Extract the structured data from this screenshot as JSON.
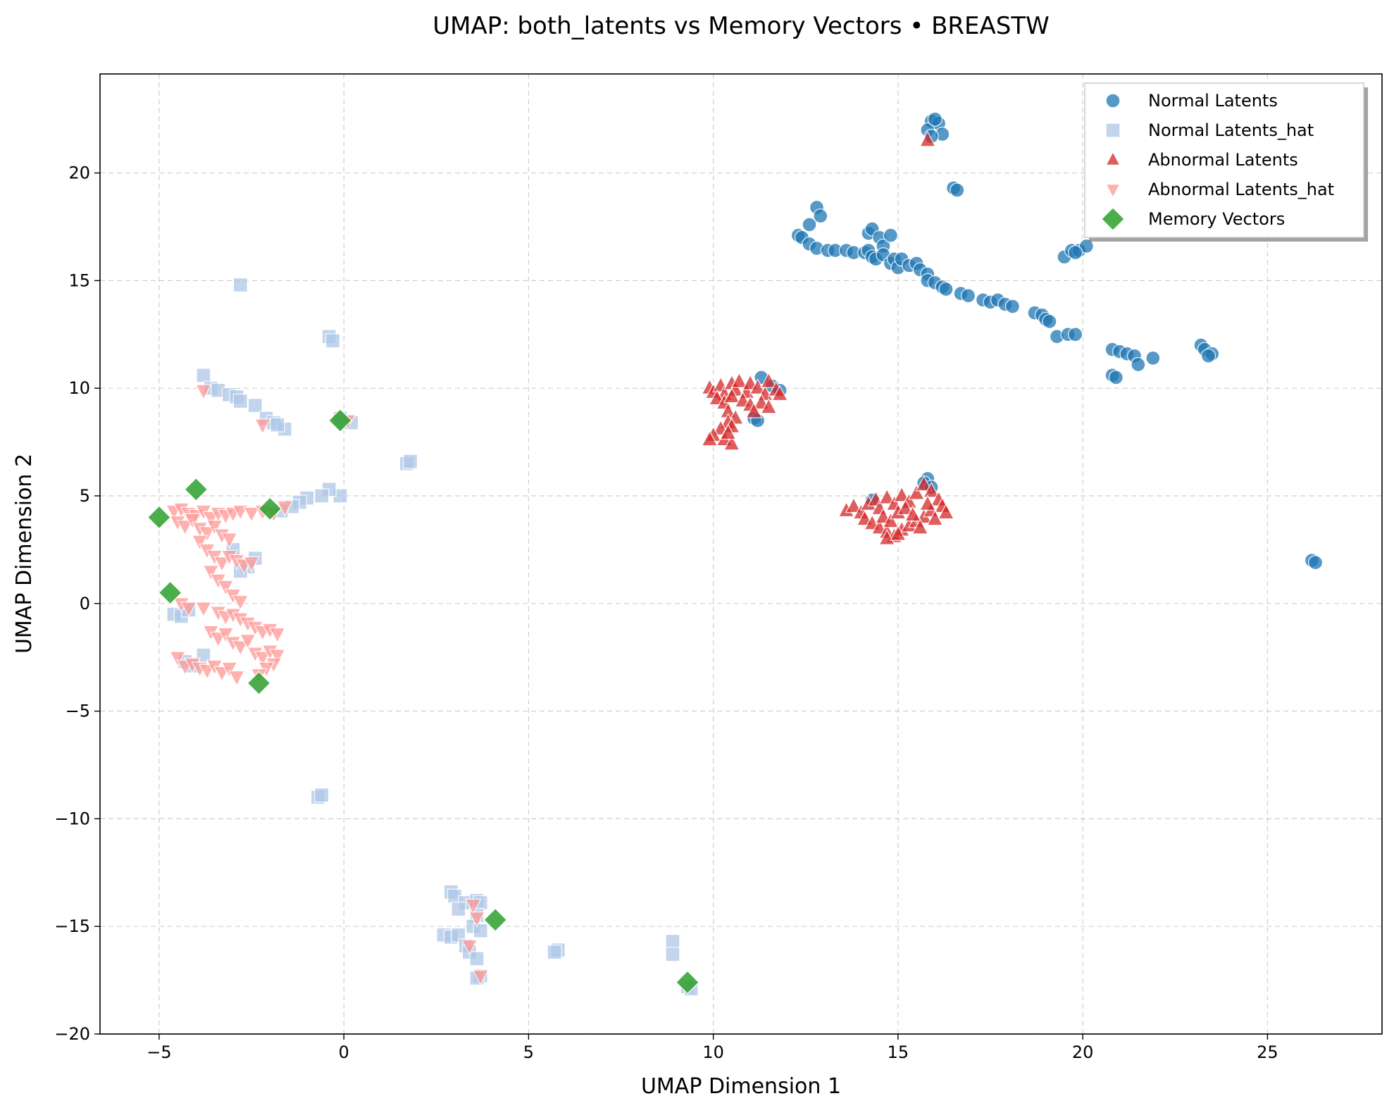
{
  "chart_data": {
    "type": "scatter",
    "title": "UMAP: both_latents vs Memory Vectors • BREASTW",
    "xlabel": "UMAP Dimension 1",
    "ylabel": "UMAP Dimension 2",
    "xlim": [
      -6.6,
      28.1
    ],
    "ylim": [
      -20,
      24.6
    ],
    "xticks": [
      -5,
      0,
      5,
      10,
      15,
      20,
      25
    ],
    "yticks": [
      -20,
      -15,
      -10,
      -5,
      0,
      5,
      10,
      15,
      20
    ],
    "xtick_labels": [
      "−5",
      "0",
      "5",
      "10",
      "15",
      "20",
      "25"
    ],
    "ytick_labels": [
      "−20",
      "−15",
      "−10",
      "−5",
      "0",
      "5",
      "10",
      "15",
      "20"
    ],
    "grid": true,
    "legend_position": "top-right",
    "series": [
      {
        "name": "Normal Latents",
        "marker": "circle",
        "color": "#1f77b4",
        "points": [
          [
            15.9,
            22.4
          ],
          [
            16.1,
            22.3
          ],
          [
            15.8,
            22.0
          ],
          [
            16.2,
            21.8
          ],
          [
            15.9,
            21.7
          ],
          [
            16.0,
            22.5
          ],
          [
            16.5,
            19.3
          ],
          [
            16.6,
            19.2
          ],
          [
            12.8,
            18.4
          ],
          [
            12.9,
            18.0
          ],
          [
            12.6,
            17.6
          ],
          [
            12.3,
            17.1
          ],
          [
            12.4,
            17.0
          ],
          [
            12.6,
            16.7
          ],
          [
            12.8,
            16.5
          ],
          [
            13.1,
            16.4
          ],
          [
            13.3,
            16.4
          ],
          [
            13.6,
            16.4
          ],
          [
            13.8,
            16.3
          ],
          [
            14.2,
            17.2
          ],
          [
            14.3,
            17.4
          ],
          [
            14.5,
            17.0
          ],
          [
            14.6,
            16.6
          ],
          [
            14.8,
            17.1
          ],
          [
            14.1,
            16.3
          ],
          [
            14.2,
            16.4
          ],
          [
            14.3,
            16.1
          ],
          [
            14.4,
            16.0
          ],
          [
            14.6,
            16.2
          ],
          [
            14.8,
            15.8
          ],
          [
            14.9,
            16.0
          ],
          [
            15.0,
            15.6
          ],
          [
            15.1,
            16.0
          ],
          [
            15.3,
            15.7
          ],
          [
            15.5,
            15.8
          ],
          [
            15.6,
            15.5
          ],
          [
            15.8,
            15.3
          ],
          [
            15.8,
            15.0
          ],
          [
            16.0,
            14.9
          ],
          [
            16.2,
            14.7
          ],
          [
            16.3,
            14.6
          ],
          [
            16.7,
            14.4
          ],
          [
            16.9,
            14.3
          ],
          [
            17.3,
            14.1
          ],
          [
            17.5,
            14.0
          ],
          [
            17.7,
            14.1
          ],
          [
            17.9,
            13.9
          ],
          [
            18.1,
            13.8
          ],
          [
            18.7,
            13.5
          ],
          [
            18.9,
            13.4
          ],
          [
            19.0,
            13.2
          ],
          [
            19.1,
            13.1
          ],
          [
            19.3,
            12.4
          ],
          [
            19.6,
            12.5
          ],
          [
            19.8,
            12.5
          ],
          [
            19.5,
            16.1
          ],
          [
            19.7,
            16.4
          ],
          [
            19.9,
            16.4
          ],
          [
            20.1,
            16.6
          ],
          [
            19.8,
            16.3
          ],
          [
            20.8,
            11.8
          ],
          [
            21.0,
            11.7
          ],
          [
            21.2,
            11.6
          ],
          [
            21.4,
            11.5
          ],
          [
            21.9,
            11.4
          ],
          [
            21.5,
            11.1
          ],
          [
            20.8,
            10.6
          ],
          [
            20.9,
            10.5
          ],
          [
            23.2,
            12.0
          ],
          [
            23.3,
            11.8
          ],
          [
            23.5,
            11.6
          ],
          [
            23.4,
            11.5
          ],
          [
            26.2,
            2.0
          ],
          [
            26.3,
            1.9
          ],
          [
            11.3,
            10.5
          ],
          [
            11.6,
            10.1
          ],
          [
            11.8,
            9.9
          ],
          [
            11.1,
            8.6
          ],
          [
            11.2,
            8.5
          ],
          [
            15.8,
            5.8
          ],
          [
            15.7,
            5.6
          ],
          [
            14.3,
            4.8
          ],
          [
            15.9,
            5.4
          ]
        ]
      },
      {
        "name": "Normal Latents_hat",
        "marker": "square",
        "color": "#aec7e8",
        "points": [
          [
            -2.8,
            14.8
          ],
          [
            -0.4,
            12.4
          ],
          [
            -0.3,
            12.2
          ],
          [
            -3.8,
            10.6
          ],
          [
            -3.6,
            10.0
          ],
          [
            -3.4,
            9.9
          ],
          [
            -3.1,
            9.7
          ],
          [
            -2.9,
            9.6
          ],
          [
            -2.8,
            9.4
          ],
          [
            -2.4,
            9.2
          ],
          [
            -2.1,
            8.6
          ],
          [
            -1.9,
            8.4
          ],
          [
            -1.6,
            8.1
          ],
          [
            -1.8,
            8.3
          ],
          [
            0.0,
            8.4
          ],
          [
            0.2,
            8.4
          ],
          [
            -0.1,
            8.6
          ],
          [
            1.7,
            6.5
          ],
          [
            1.8,
            6.6
          ],
          [
            -0.1,
            5.0
          ],
          [
            -0.4,
            5.3
          ],
          [
            -0.6,
            5.0
          ],
          [
            -1.0,
            4.9
          ],
          [
            -1.2,
            4.7
          ],
          [
            -1.4,
            4.5
          ],
          [
            -1.7,
            4.3
          ],
          [
            -3.0,
            2.5
          ],
          [
            -2.4,
            2.1
          ],
          [
            -2.6,
            1.7
          ],
          [
            -2.8,
            1.5
          ],
          [
            -4.6,
            -0.5
          ],
          [
            -4.4,
            -0.6
          ],
          [
            -4.2,
            -0.3
          ],
          [
            -3.8,
            -2.4
          ],
          [
            -4.3,
            -2.7
          ],
          [
            -4.1,
            -2.9
          ],
          [
            -0.7,
            -9.0
          ],
          [
            -0.6,
            -8.9
          ],
          [
            2.9,
            -13.4
          ],
          [
            3.0,
            -13.6
          ],
          [
            3.3,
            -13.9
          ],
          [
            3.1,
            -14.2
          ],
          [
            3.6,
            -13.8
          ],
          [
            3.7,
            -13.9
          ],
          [
            3.6,
            -14.5
          ],
          [
            3.5,
            -15.0
          ],
          [
            3.7,
            -15.2
          ],
          [
            2.7,
            -15.4
          ],
          [
            2.9,
            -15.5
          ],
          [
            3.1,
            -15.4
          ],
          [
            3.3,
            -15.9
          ],
          [
            3.4,
            -16.2
          ],
          [
            3.6,
            -16.5
          ],
          [
            3.7,
            -17.3
          ],
          [
            3.6,
            -17.4
          ],
          [
            5.8,
            -16.1
          ],
          [
            5.7,
            -16.2
          ],
          [
            8.9,
            -15.7
          ],
          [
            8.9,
            -16.3
          ],
          [
            9.3,
            -17.8
          ],
          [
            9.4,
            -17.9
          ]
        ]
      },
      {
        "name": "Abnormal Latents",
        "marker": "triangle-up",
        "color": "#d62728",
        "points": [
          [
            15.8,
            21.5
          ],
          [
            9.9,
            10.0
          ],
          [
            10.0,
            9.8
          ],
          [
            10.2,
            10.1
          ],
          [
            10.3,
            9.7
          ],
          [
            10.5,
            10.2
          ],
          [
            10.6,
            9.9
          ],
          [
            10.7,
            10.3
          ],
          [
            10.9,
            9.8
          ],
          [
            11.0,
            10.2
          ],
          [
            11.2,
            10.0
          ],
          [
            11.4,
            9.7
          ],
          [
            11.5,
            10.3
          ],
          [
            11.7,
            9.9
          ],
          [
            11.8,
            9.7
          ],
          [
            10.1,
            9.5
          ],
          [
            10.3,
            9.3
          ],
          [
            10.5,
            9.6
          ],
          [
            10.8,
            9.4
          ],
          [
            11.0,
            9.2
          ],
          [
            11.3,
            9.3
          ],
          [
            11.5,
            9.1
          ],
          [
            11.1,
            8.9
          ],
          [
            10.4,
            8.9
          ],
          [
            10.6,
            8.6
          ],
          [
            10.4,
            8.4
          ],
          [
            10.2,
            8.1
          ],
          [
            10.5,
            8.2
          ],
          [
            10.0,
            7.8
          ],
          [
            10.3,
            7.6
          ],
          [
            10.5,
            7.4
          ],
          [
            9.9,
            7.6
          ],
          [
            10.4,
            7.9
          ],
          [
            13.6,
            4.3
          ],
          [
            13.8,
            4.5
          ],
          [
            14.0,
            4.2
          ],
          [
            14.2,
            4.6
          ],
          [
            14.4,
            4.8
          ],
          [
            14.5,
            4.4
          ],
          [
            14.7,
            4.9
          ],
          [
            14.9,
            4.6
          ],
          [
            15.1,
            5.0
          ],
          [
            15.3,
            4.7
          ],
          [
            15.5,
            5.1
          ],
          [
            15.7,
            5.5
          ],
          [
            15.9,
            5.2
          ],
          [
            16.1,
            4.8
          ],
          [
            16.2,
            4.5
          ],
          [
            16.3,
            4.2
          ],
          [
            14.1,
            3.9
          ],
          [
            14.3,
            3.7
          ],
          [
            14.5,
            3.5
          ],
          [
            14.7,
            3.3
          ],
          [
            14.9,
            3.1
          ],
          [
            15.1,
            3.4
          ],
          [
            15.3,
            3.6
          ],
          [
            15.5,
            3.8
          ],
          [
            15.7,
            4.0
          ],
          [
            15.9,
            4.3
          ],
          [
            16.0,
            3.9
          ],
          [
            14.6,
            4.0
          ],
          [
            14.8,
            3.8
          ],
          [
            15.0,
            4.2
          ],
          [
            15.2,
            4.4
          ],
          [
            15.4,
            4.1
          ],
          [
            14.7,
            3.0
          ],
          [
            15.0,
            3.2
          ],
          [
            15.6,
            3.5
          ],
          [
            15.8,
            4.6
          ]
        ]
      },
      {
        "name": "Abnormal Latents_hat",
        "marker": "triangle-down",
        "color": "#ff9896",
        "points": [
          [
            -3.8,
            9.9
          ],
          [
            -2.2,
            8.3
          ],
          [
            0.1,
            8.5
          ],
          [
            -4.6,
            4.3
          ],
          [
            -4.4,
            4.4
          ],
          [
            -4.2,
            4.2
          ],
          [
            -4.0,
            4.1
          ],
          [
            -3.8,
            4.3
          ],
          [
            -3.6,
            4.0
          ],
          [
            -3.4,
            4.2
          ],
          [
            -3.2,
            4.1
          ],
          [
            -3.0,
            4.2
          ],
          [
            -2.8,
            4.3
          ],
          [
            -2.5,
            4.2
          ],
          [
            -2.2,
            4.3
          ],
          [
            -1.9,
            4.2
          ],
          [
            -1.6,
            4.5
          ],
          [
            -4.5,
            3.8
          ],
          [
            -4.3,
            3.6
          ],
          [
            -4.1,
            3.9
          ],
          [
            -3.9,
            3.5
          ],
          [
            -3.7,
            3.3
          ],
          [
            -3.5,
            3.6
          ],
          [
            -3.3,
            3.2
          ],
          [
            -3.1,
            3.0
          ],
          [
            -3.9,
            2.9
          ],
          [
            -3.7,
            2.5
          ],
          [
            -3.5,
            2.2
          ],
          [
            -3.3,
            1.9
          ],
          [
            -3.1,
            2.2
          ],
          [
            -2.9,
            2.0
          ],
          [
            -2.7,
            1.8
          ],
          [
            -2.5,
            1.9
          ],
          [
            -3.6,
            1.5
          ],
          [
            -3.4,
            1.1
          ],
          [
            -3.2,
            0.8
          ],
          [
            -3.0,
            0.4
          ],
          [
            -2.8,
            0.1
          ],
          [
            -4.4,
            0.0
          ],
          [
            -4.2,
            -0.2
          ],
          [
            -3.8,
            -0.2
          ],
          [
            -3.4,
            -0.4
          ],
          [
            -3.2,
            -0.6
          ],
          [
            -3.0,
            -0.5
          ],
          [
            -2.8,
            -0.7
          ],
          [
            -2.6,
            -0.9
          ],
          [
            -2.4,
            -1.1
          ],
          [
            -2.2,
            -1.3
          ],
          [
            -2.0,
            -1.2
          ],
          [
            -1.8,
            -1.4
          ],
          [
            -3.6,
            -1.3
          ],
          [
            -3.4,
            -1.6
          ],
          [
            -3.2,
            -1.4
          ],
          [
            -3.0,
            -1.8
          ],
          [
            -2.8,
            -2.0
          ],
          [
            -2.6,
            -1.7
          ],
          [
            -2.4,
            -2.3
          ],
          [
            -2.2,
            -2.5
          ],
          [
            -2.0,
            -2.2
          ],
          [
            -1.8,
            -2.4
          ],
          [
            -1.9,
            -2.8
          ],
          [
            -2.1,
            -3.0
          ],
          [
            -2.3,
            -3.3
          ],
          [
            -4.5,
            -2.5
          ],
          [
            -4.3,
            -2.9
          ],
          [
            -4.1,
            -2.8
          ],
          [
            -3.9,
            -3.0
          ],
          [
            -3.7,
            -3.1
          ],
          [
            -3.5,
            -2.9
          ],
          [
            -3.3,
            -3.2
          ],
          [
            -3.1,
            -3.0
          ],
          [
            -2.9,
            -3.4
          ],
          [
            3.5,
            -14.0
          ],
          [
            3.6,
            -14.6
          ],
          [
            3.4,
            -15.9
          ],
          [
            3.7,
            -17.3
          ]
        ]
      },
      {
        "name": "Memory Vectors",
        "marker": "diamond",
        "color": "#2ca02c",
        "points": [
          [
            -4.0,
            5.3
          ],
          [
            -5.0,
            4.0
          ],
          [
            -2.0,
            4.4
          ],
          [
            -4.7,
            0.5
          ],
          [
            -2.3,
            -3.7
          ],
          [
            -0.1,
            8.5
          ],
          [
            4.1,
            -14.7
          ],
          [
            9.3,
            -17.6
          ]
        ]
      }
    ]
  }
}
